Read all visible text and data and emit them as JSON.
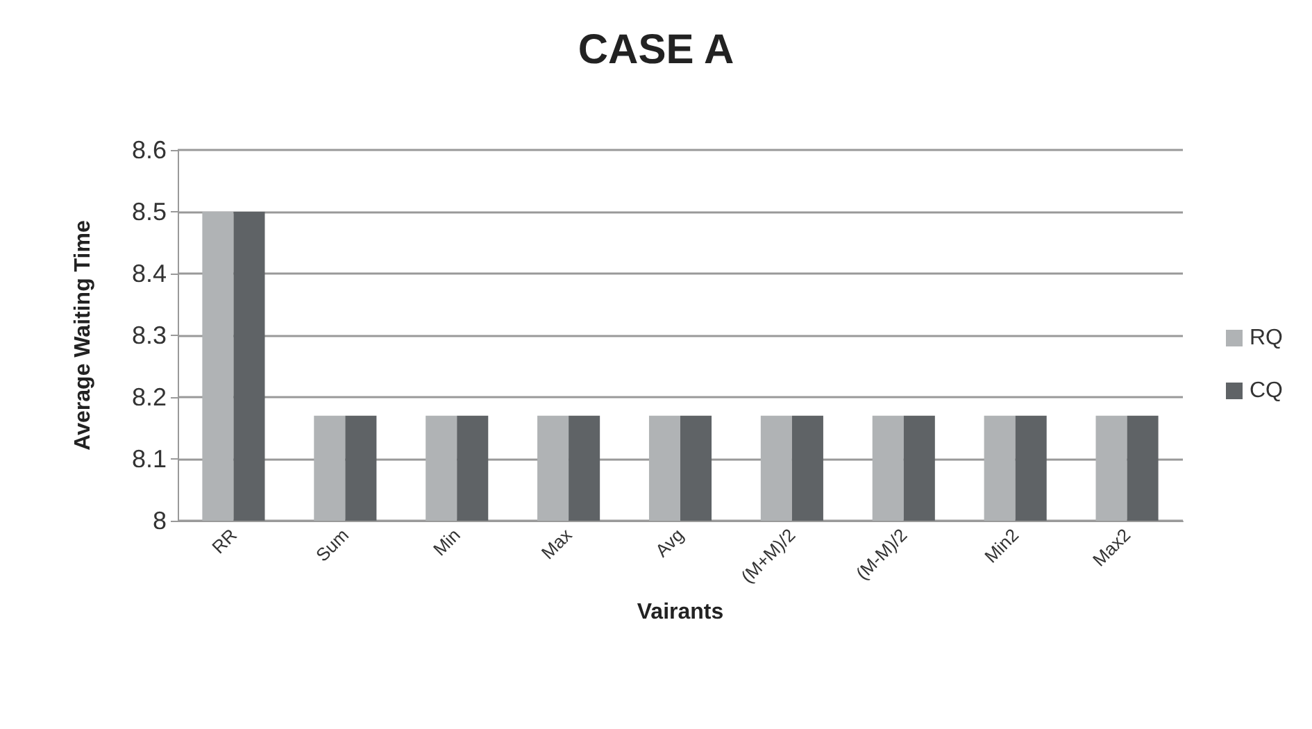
{
  "chart_data": {
    "type": "bar",
    "title": "CASE A",
    "xlabel": "Vairants",
    "ylabel": "Average Waiting Time",
    "categories": [
      "RR",
      "Sum",
      "Min",
      "Max",
      "Avg",
      "(M+M)/2",
      "(M-M)/2",
      "Min2",
      "Max2"
    ],
    "series": [
      {
        "name": "RQ",
        "color": "#b0b3b5",
        "values": [
          8.5,
          8.17,
          8.17,
          8.17,
          8.17,
          8.17,
          8.17,
          8.17,
          8.17
        ]
      },
      {
        "name": "CQ",
        "color": "#5f6366",
        "values": [
          8.5,
          8.17,
          8.17,
          8.17,
          8.17,
          8.17,
          8.17,
          8.17,
          8.17
        ]
      }
    ],
    "ylim": [
      8,
      8.6
    ],
    "yticks": [
      8,
      8.1,
      8.2,
      8.3,
      8.4,
      8.5,
      8.6
    ],
    "grid": "y",
    "legend": "right"
  }
}
